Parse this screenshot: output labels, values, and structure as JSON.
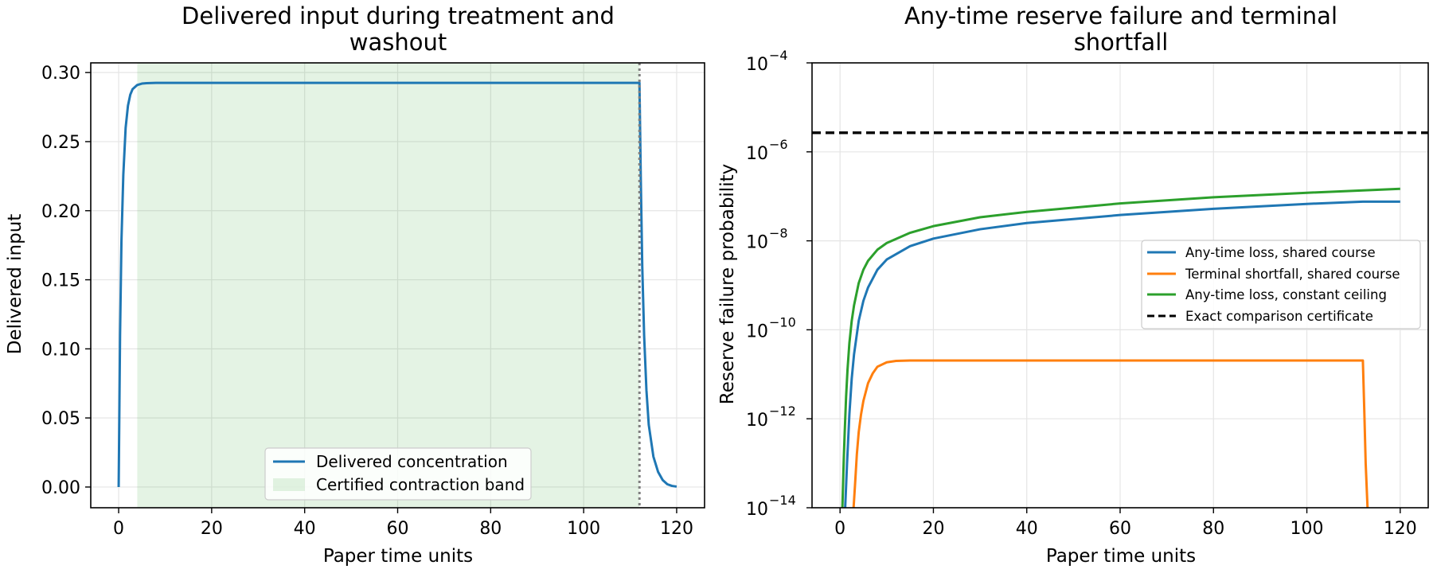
{
  "colors": {
    "blue": "#1f77b4",
    "orange": "#ff7f0e",
    "green": "#2ca02c",
    "band": "#2ca02c",
    "dashed": "#000000",
    "vline": "#7f7f7f"
  },
  "chart_data": [
    {
      "type": "line",
      "title_line1": "Delivered input during treatment and",
      "title_line2": "washout",
      "xlabel": "Paper time units",
      "ylabel": "Delivered input",
      "xlim": [
        -6,
        126
      ],
      "ylim": [
        -0.015,
        0.307
      ],
      "x_ticks": [
        0,
        20,
        40,
        60,
        80,
        100,
        120
      ],
      "x_tick_labels": [
        "0",
        "20",
        "40",
        "60",
        "80",
        "100",
        "120"
      ],
      "y_ticks": [
        0.0,
        0.05,
        0.1,
        0.15,
        0.2,
        0.25,
        0.3
      ],
      "y_tick_labels": [
        "0.00",
        "0.05",
        "0.10",
        "0.15",
        "0.20",
        "0.25",
        "0.30"
      ],
      "grid": true,
      "legend_position": "lower center",
      "series": [
        {
          "name": "Delivered concentration",
          "color": "#1f77b4",
          "x": [
            0,
            0.3,
            0.6,
            1,
            1.5,
            2,
            2.5,
            3,
            4,
            5,
            6,
            8,
            10,
            20,
            60,
            100,
            112,
            112.3,
            112.6,
            113,
            113.5,
            114,
            115,
            116,
            117,
            118,
            119,
            120
          ],
          "y": [
            0,
            0.11,
            0.178,
            0.226,
            0.26,
            0.276,
            0.284,
            0.288,
            0.291,
            0.292,
            0.2923,
            0.2925,
            0.2925,
            0.2925,
            0.2925,
            0.2925,
            0.2925,
            0.22,
            0.16,
            0.11,
            0.07,
            0.045,
            0.022,
            0.011,
            0.005,
            0.002,
            0.0008,
            0.0003
          ]
        }
      ],
      "band": {
        "name": "Certified contraction band",
        "x0": 4,
        "x1": 112
      },
      "vline_x": 112
    },
    {
      "type": "line",
      "title_line1": "Any-time reserve failure and terminal",
      "title_line2": "shortfall",
      "xlabel": "Paper time units",
      "ylabel": "Reserve failure probability",
      "yscale": "log",
      "xlim": [
        -6,
        126
      ],
      "ylim_log10": [
        -14,
        -4
      ],
      "x_ticks": [
        0,
        20,
        40,
        60,
        80,
        100,
        120
      ],
      "x_tick_labels": [
        "0",
        "20",
        "40",
        "60",
        "80",
        "100",
        "120"
      ],
      "y_ticks_exp": [
        -14,
        -12,
        -10,
        -8,
        -6,
        -4
      ],
      "y_tick_labels": [
        "−14",
        "−12",
        "−10",
        "−8",
        "−6",
        "−4"
      ],
      "y_tick_base": "10",
      "grid": true,
      "legend_position": "center right",
      "series": [
        {
          "name": "Any-time loss, shared course",
          "color": "#1f77b4",
          "x": [
            1.1,
            1.5,
            2,
            2.5,
            3,
            4,
            5,
            6,
            8,
            10,
            15,
            20,
            30,
            40,
            60,
            80,
            100,
            112,
            120
          ],
          "log10_y": [
            -14,
            -13,
            -11.9,
            -11.1,
            -10.55,
            -9.8,
            -9.35,
            -9.05,
            -8.65,
            -8.42,
            -8.12,
            -7.95,
            -7.74,
            -7.6,
            -7.42,
            -7.28,
            -7.17,
            -7.12,
            -7.12
          ]
        },
        {
          "name": "Terminal shortfall, shared course",
          "color": "#ff7f0e",
          "x": [
            2.9,
            3.2,
            3.6,
            4,
            4.5,
            5,
            6,
            7,
            8,
            10,
            12,
            15,
            20,
            60,
            100,
            112,
            112.3,
            112.6,
            113
          ],
          "log10_y": [
            -14,
            -13.5,
            -12.8,
            -12.3,
            -11.9,
            -11.6,
            -11.2,
            -10.98,
            -10.83,
            -10.73,
            -10.7,
            -10.69,
            -10.69,
            -10.69,
            -10.69,
            -10.69,
            -11.8,
            -13,
            -14
          ]
        },
        {
          "name": "Any-time loss, constant ceiling",
          "color": "#2ca02c",
          "x": [
            0.5,
            0.8,
            1,
            1.3,
            1.6,
            2,
            2.5,
            3,
            4,
            5,
            6,
            8,
            10,
            15,
            20,
            30,
            40,
            60,
            80,
            100,
            120
          ],
          "log10_y": [
            -14,
            -12.9,
            -12.3,
            -11.5,
            -10.9,
            -10.3,
            -9.8,
            -9.45,
            -8.95,
            -8.65,
            -8.45,
            -8.2,
            -8.05,
            -7.82,
            -7.67,
            -7.47,
            -7.35,
            -7.16,
            -7.02,
            -6.92,
            -6.83
          ]
        }
      ],
      "reference_line": {
        "name": "Exact comparison certificate",
        "log10_y": -5.57,
        "style": "dashed",
        "color": "#000000"
      }
    }
  ]
}
